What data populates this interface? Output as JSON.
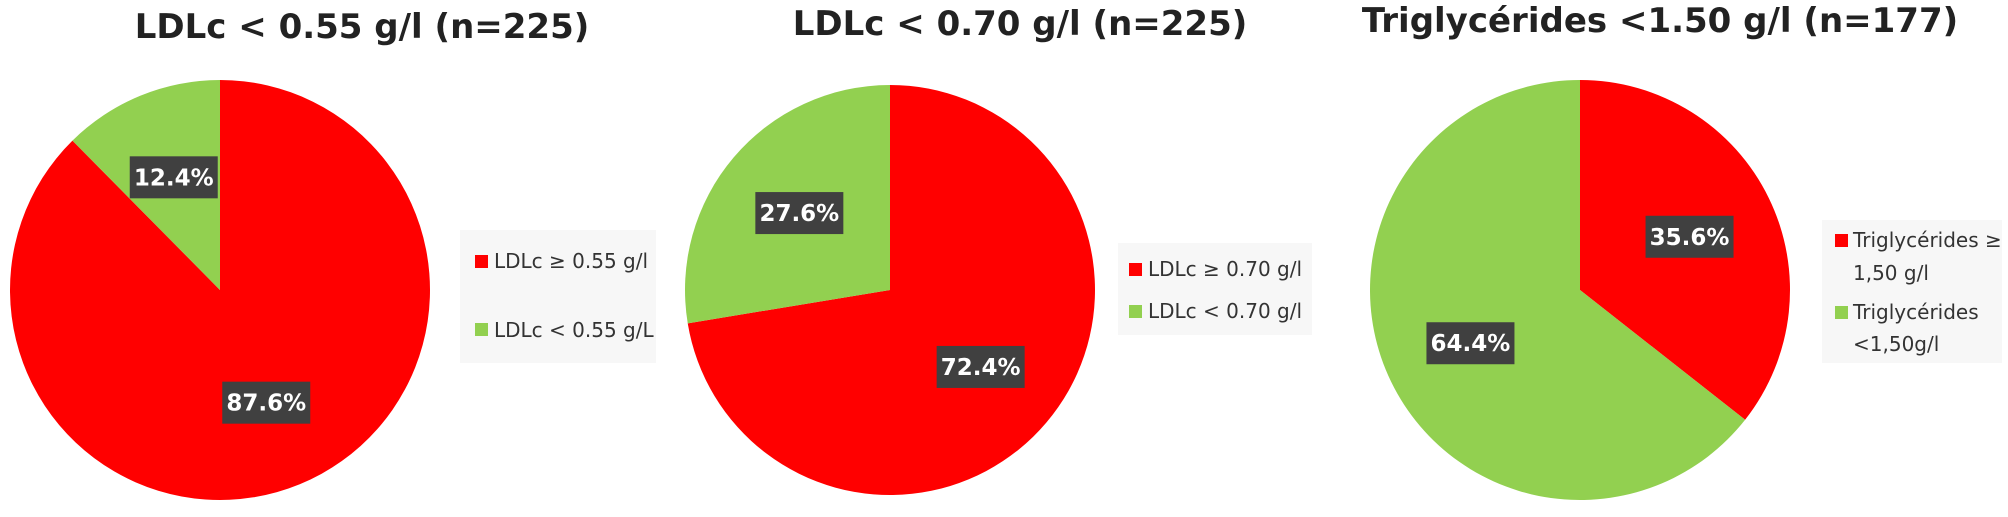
{
  "colors": {
    "red": "#ff0000",
    "green": "#92d050"
  },
  "chart_data": [
    {
      "type": "pie",
      "title": "LDLc < 0.55 g/l (n=225)",
      "legend_position": "right",
      "series": [
        {
          "name": "LDLc ≥ 0.55 g/l",
          "value": 87.6,
          "label": "87.6%",
          "color": "#ff0000"
        },
        {
          "name": "LDLc < 0.55 g/L",
          "value": 12.4,
          "label": "12.4%",
          "color": "#92d050"
        }
      ],
      "legend": [
        "LDLc ≥ 0.55 g/l",
        "LDLc < 0.55 g/L"
      ]
    },
    {
      "type": "pie",
      "title": "LDLc < 0.70 g/l (n=225)",
      "legend_position": "right",
      "series": [
        {
          "name": "LDLc ≥ 0.70 g/l",
          "value": 72.4,
          "label": "72.4%",
          "color": "#ff0000"
        },
        {
          "name": "LDLc < 0.70 g/l",
          "value": 27.6,
          "label": "27.6%",
          "color": "#92d050"
        }
      ],
      "legend": [
        "LDLc ≥ 0.70 g/l",
        "LDLc < 0.70 g/l"
      ]
    },
    {
      "type": "pie",
      "title": "Triglycérides <1.50 g/l (n=177)",
      "legend_position": "right",
      "series": [
        {
          "name": "Triglycérides ≥ 1,50 g/l",
          "value": 35.6,
          "label": "35.6%",
          "color": "#ff0000"
        },
        {
          "name": "Triglycérides <1,50g/l",
          "value": 64.4,
          "label": "64.4%",
          "color": "#92d050"
        }
      ],
      "legend": [
        [
          "Triglycérides ≥",
          "1,50 g/l"
        ],
        [
          "Triglycérides",
          "<1,50g/l"
        ]
      ]
    }
  ]
}
